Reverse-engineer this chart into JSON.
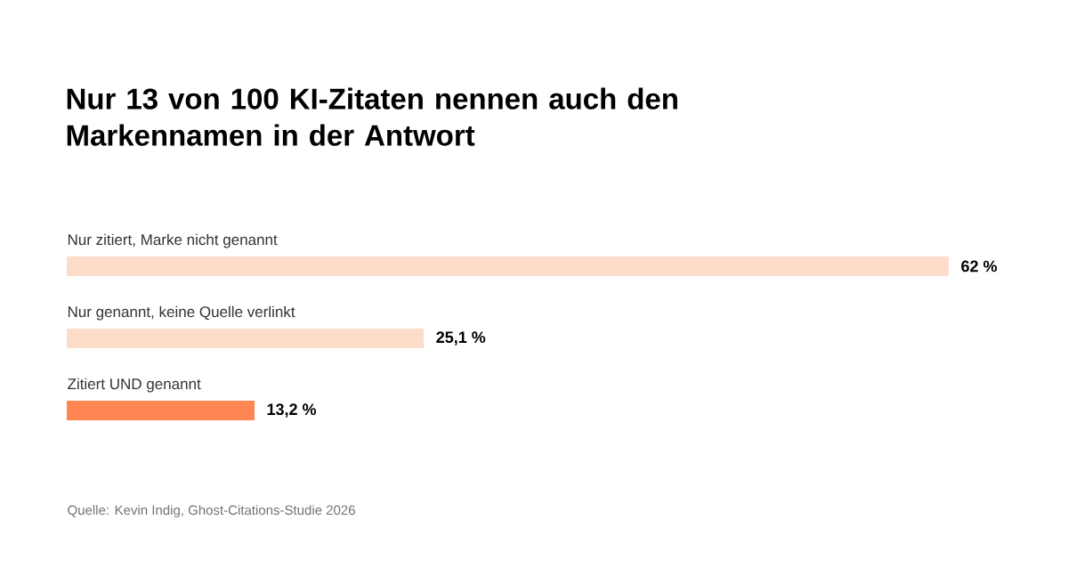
{
  "chart_data": {
    "type": "bar",
    "orientation": "horizontal",
    "title": "Nur 13 von 100 KI-Zitaten nennen auch den Markennamen in der Antwort",
    "categories": [
      "Nur zitiert, Marke nicht genannt",
      "Nur genannt, keine Quelle verlinkt",
      "Zitiert UND genannt"
    ],
    "values": [
      62,
      25.1,
      13.2
    ],
    "colors": [
      "#fddcc9",
      "#fddcc9",
      "#ff8552"
    ],
    "value_labels": [
      "62 %",
      "25,1 %",
      "13,2 %"
    ],
    "annotations": [
      "Quelle: Kevin Indig, Ghost-Citations-Studie 2026"
    ]
  }
}
